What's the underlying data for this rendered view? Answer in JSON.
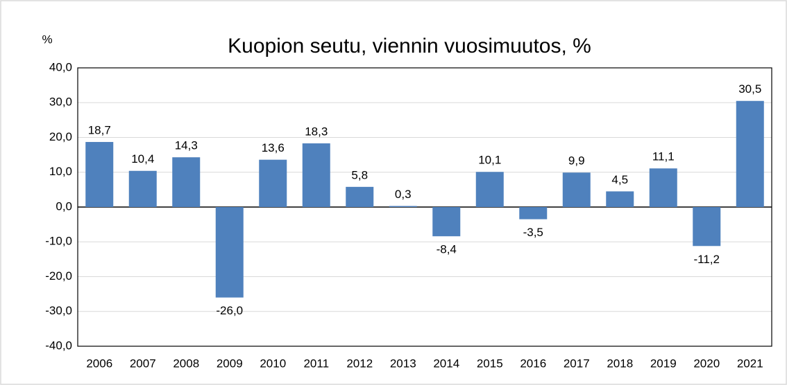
{
  "chart_data": {
    "type": "bar",
    "title": "Kuopion seutu, viennin vuosimuutos, %",
    "y_label": "%",
    "categories": [
      "2006",
      "2007",
      "2008",
      "2009",
      "2010",
      "2011",
      "2012",
      "2013",
      "2014",
      "2015",
      "2016",
      "2017",
      "2018",
      "2019",
      "2020",
      "2021"
    ],
    "values": [
      18.7,
      10.4,
      14.3,
      -26.0,
      13.6,
      18.3,
      5.8,
      0.3,
      -8.4,
      10.1,
      -3.5,
      9.9,
      4.5,
      11.1,
      -11.2,
      30.5
    ],
    "value_labels": [
      "18,7",
      "10,4",
      "14,3",
      "-26,0",
      "13,6",
      "18,3",
      "5,8",
      "0,3",
      "-8,4",
      "10,1",
      "-3,5",
      "9,9",
      "4,5",
      "11,1",
      "-11,2",
      "30,5"
    ],
    "color": "#4f81bd",
    "ylim": [
      -40,
      40
    ],
    "yticks": [
      {
        "value": -40,
        "label": "-40,0"
      },
      {
        "value": -30,
        "label": "-30,0"
      },
      {
        "value": -20,
        "label": "-20,0"
      },
      {
        "value": -10,
        "label": "-10,0"
      },
      {
        "value": 0,
        "label": "0,0"
      },
      {
        "value": 10,
        "label": "10,0"
      },
      {
        "value": 20,
        "label": "20,0"
      },
      {
        "value": 30,
        "label": "30,0"
      },
      {
        "value": 40,
        "label": "40,0"
      }
    ],
    "grid": true
  }
}
